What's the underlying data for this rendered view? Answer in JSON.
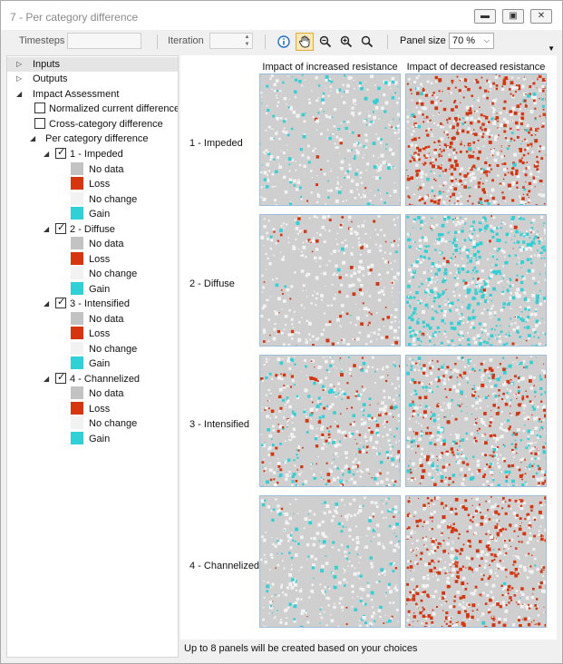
{
  "window": {
    "title": "7 - Per category difference",
    "controls": [
      "minimize",
      "maximize",
      "close"
    ]
  },
  "toolbar": {
    "timesteps_label": "Timesteps",
    "timesteps_value": "",
    "iteration_label": "Iteration",
    "iteration_value": "",
    "tools": [
      "info-icon",
      "pan-icon",
      "zoom-out-icon",
      "zoom-in-icon",
      "zoom-fit-icon"
    ],
    "active_tool": "pan-icon",
    "panel_size_label": "Panel size",
    "panel_size_value": "70 %"
  },
  "tree": {
    "inputs": "Inputs",
    "outputs": "Outputs",
    "impact": "Impact Assessment",
    "normalized": "Normalized current difference",
    "normalized_checked": false,
    "cross": "Cross-category difference",
    "cross_checked": false,
    "per_category": "Per category difference",
    "categories": [
      {
        "label": "1 - Impeded",
        "checked": true
      },
      {
        "label": "2 - Diffuse",
        "checked": true
      },
      {
        "label": "3 - Intensified",
        "checked": true
      },
      {
        "label": "4 - Channelized",
        "checked": true
      }
    ],
    "legend": [
      {
        "label": "No data",
        "color": "#c3c3c3"
      },
      {
        "label": "Loss",
        "color": "#d6360f"
      },
      {
        "label": "No change",
        "color": "#f2f2f2"
      },
      {
        "label": "Gain",
        "color": "#2fd0d6"
      }
    ]
  },
  "panels": {
    "columns": [
      "Impact of increased resistance",
      "Impact of decreased resistance"
    ],
    "rows": [
      "1 - Impeded",
      "2 - Diffuse",
      "3 - Intensified",
      "4 - Channelized"
    ]
  },
  "status": {
    "text": "Up to 8 panels will be created based on your choices"
  }
}
